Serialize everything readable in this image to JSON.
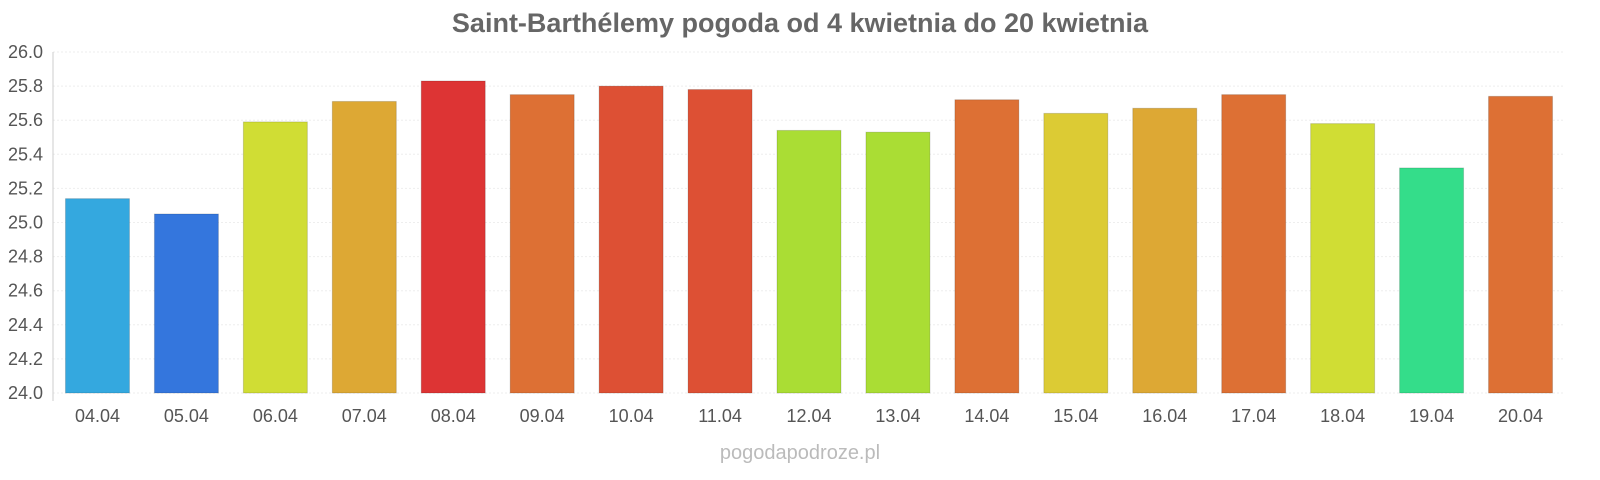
{
  "chart_data": {
    "type": "bar",
    "title": "Saint-Barthélemy pogoda od 4 kwietnia do 20 kwietnia",
    "xlabel": "",
    "ylabel": "",
    "ylim": [
      24.0,
      26.0
    ],
    "yticks": [
      "24.0",
      "24.2",
      "24.4",
      "24.6",
      "24.8",
      "25.0",
      "25.2",
      "25.4",
      "25.6",
      "25.8",
      "26.0"
    ],
    "categories": [
      "04.04",
      "05.04",
      "06.04",
      "07.04",
      "08.04",
      "09.04",
      "10.04",
      "11.04",
      "12.04",
      "13.04",
      "14.04",
      "15.04",
      "16.04",
      "17.04",
      "18.04",
      "19.04",
      "20.04"
    ],
    "values": [
      25.14,
      25.05,
      25.59,
      25.71,
      25.83,
      25.75,
      25.8,
      25.78,
      25.54,
      25.53,
      25.72,
      25.64,
      25.67,
      25.75,
      25.58,
      25.32,
      25.74
    ],
    "colors": [
      "#34a8df",
      "#3476dd",
      "#d0dd34",
      "#dda834",
      "#dd3434",
      "#dd7034",
      "#dd5034",
      "#dd5034",
      "#aadd34",
      "#aadd34",
      "#dd7034",
      "#dccb34",
      "#dda834",
      "#dd7034",
      "#d0dd34",
      "#34dd8a",
      "#dd7034"
    ],
    "grid": true,
    "legend": "none"
  },
  "credit": "pogodapodroze.pl"
}
